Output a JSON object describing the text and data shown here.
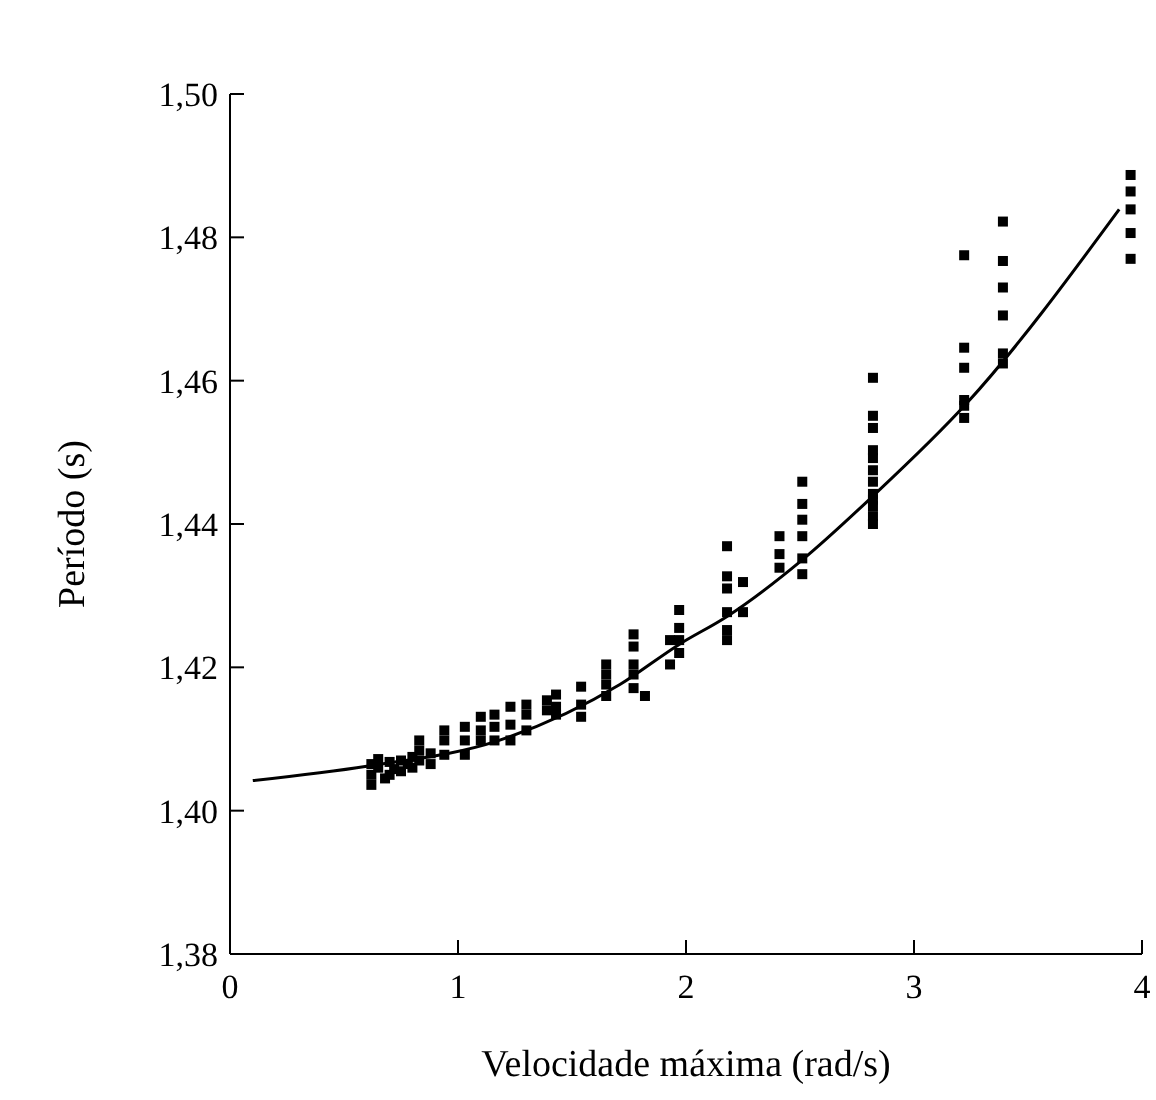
{
  "chart_data": {
    "type": "scatter",
    "xlabel": "Velocidade máxima (rad/s)",
    "ylabel": "Período (s)",
    "xlim": [
      0,
      4
    ],
    "xticks": [
      0,
      1,
      2,
      3,
      4
    ],
    "ylim": [
      1.38,
      1.5
    ],
    "yticks": [
      {
        "value": 1.38,
        "label": "1,38"
      },
      {
        "value": 1.4,
        "label": "1,40"
      },
      {
        "value": 1.42,
        "label": "1,42"
      },
      {
        "value": 1.44,
        "label": "1,44"
      },
      {
        "value": 1.46,
        "label": "1,46"
      },
      {
        "value": 1.48,
        "label": "1,48"
      },
      {
        "value": 1.5,
        "label": "1,50"
      }
    ],
    "grid": false,
    "series": [
      {
        "marker": "square",
        "color": "#000000",
        "x": [
          0.62,
          0.62,
          0.62,
          0.65,
          0.65,
          0.68,
          0.7,
          0.7,
          0.72,
          0.75,
          0.75,
          0.78,
          0.8,
          0.8,
          0.83,
          0.83,
          0.83,
          0.88,
          0.88,
          0.94,
          0.94,
          0.94,
          1.03,
          1.03,
          1.03,
          1.1,
          1.1,
          1.1,
          1.16,
          1.16,
          1.16,
          1.23,
          1.23,
          1.23,
          1.3,
          1.3,
          1.3,
          1.39,
          1.39,
          1.43,
          1.43,
          1.43,
          1.54,
          1.54,
          1.54,
          1.65,
          1.65,
          1.65,
          1.65,
          1.77,
          1.77,
          1.77,
          1.77,
          1.77,
          1.82,
          1.93,
          1.93,
          1.97,
          1.97,
          1.97,
          1.97,
          2.18,
          2.18,
          2.18,
          2.18,
          2.18,
          2.18,
          2.25,
          2.25,
          2.41,
          2.41,
          2.41,
          2.51,
          2.51,
          2.51,
          2.51,
          2.51,
          2.51,
          2.82,
          2.82,
          2.82,
          2.82,
          2.82,
          2.82,
          2.82,
          2.82,
          2.82,
          2.82,
          2.82,
          2.82,
          3.22,
          3.22,
          3.22,
          3.22,
          3.22,
          3.22,
          3.39,
          3.39,
          3.39,
          3.39,
          3.39,
          3.39,
          3.95,
          3.95,
          3.95,
          3.95,
          3.95
        ],
        "values": [
          1.4036,
          1.405,
          1.4065,
          1.406,
          1.4072,
          1.4045,
          1.405,
          1.4068,
          1.4058,
          1.4055,
          1.407,
          1.4065,
          1.406,
          1.4075,
          1.407,
          1.4084,
          1.4098,
          1.4065,
          1.408,
          1.4078,
          1.4098,
          1.4112,
          1.4078,
          1.4098,
          1.4117,
          1.4098,
          1.4112,
          1.4131,
          1.4098,
          1.4117,
          1.4134,
          1.4098,
          1.412,
          1.4145,
          1.4112,
          1.4134,
          1.4148,
          1.414,
          1.4154,
          1.4134,
          1.4145,
          1.4162,
          1.4131,
          1.4148,
          1.4173,
          1.416,
          1.4176,
          1.419,
          1.4204,
          1.4171,
          1.419,
          1.4204,
          1.4229,
          1.4246,
          1.416,
          1.4204,
          1.4238,
          1.422,
          1.4238,
          1.4255,
          1.428,
          1.4238,
          1.4252,
          1.4277,
          1.431,
          1.4327,
          1.4369,
          1.4277,
          1.4319,
          1.4339,
          1.4358,
          1.4383,
          1.433,
          1.4352,
          1.4383,
          1.4406,
          1.4428,
          1.4459,
          1.44,
          1.4411,
          1.4425,
          1.4434,
          1.4442,
          1.4459,
          1.4475,
          1.4492,
          1.4503,
          1.4534,
          1.4551,
          1.4604,
          1.4548,
          1.4565,
          1.4573,
          1.4618,
          1.4646,
          1.4775,
          1.4624,
          1.4638,
          1.4691,
          1.473,
          1.4767,
          1.4822,
          1.4887,
          1.4864,
          1.4839,
          1.4806,
          1.477
        ]
      },
      {
        "type": "line",
        "marker": "none",
        "line_style": "solid",
        "color": "#000000",
        "x": [
          0.1,
          0.6,
          1.18,
          1.71,
          1.97,
          2.18,
          2.51,
          2.82,
          3.23,
          3.9
        ],
        "values": [
          1.4042,
          1.4062,
          1.4098,
          1.4176,
          1.4232,
          1.4271,
          1.435,
          1.4439,
          1.4568,
          1.4839
        ]
      }
    ]
  }
}
